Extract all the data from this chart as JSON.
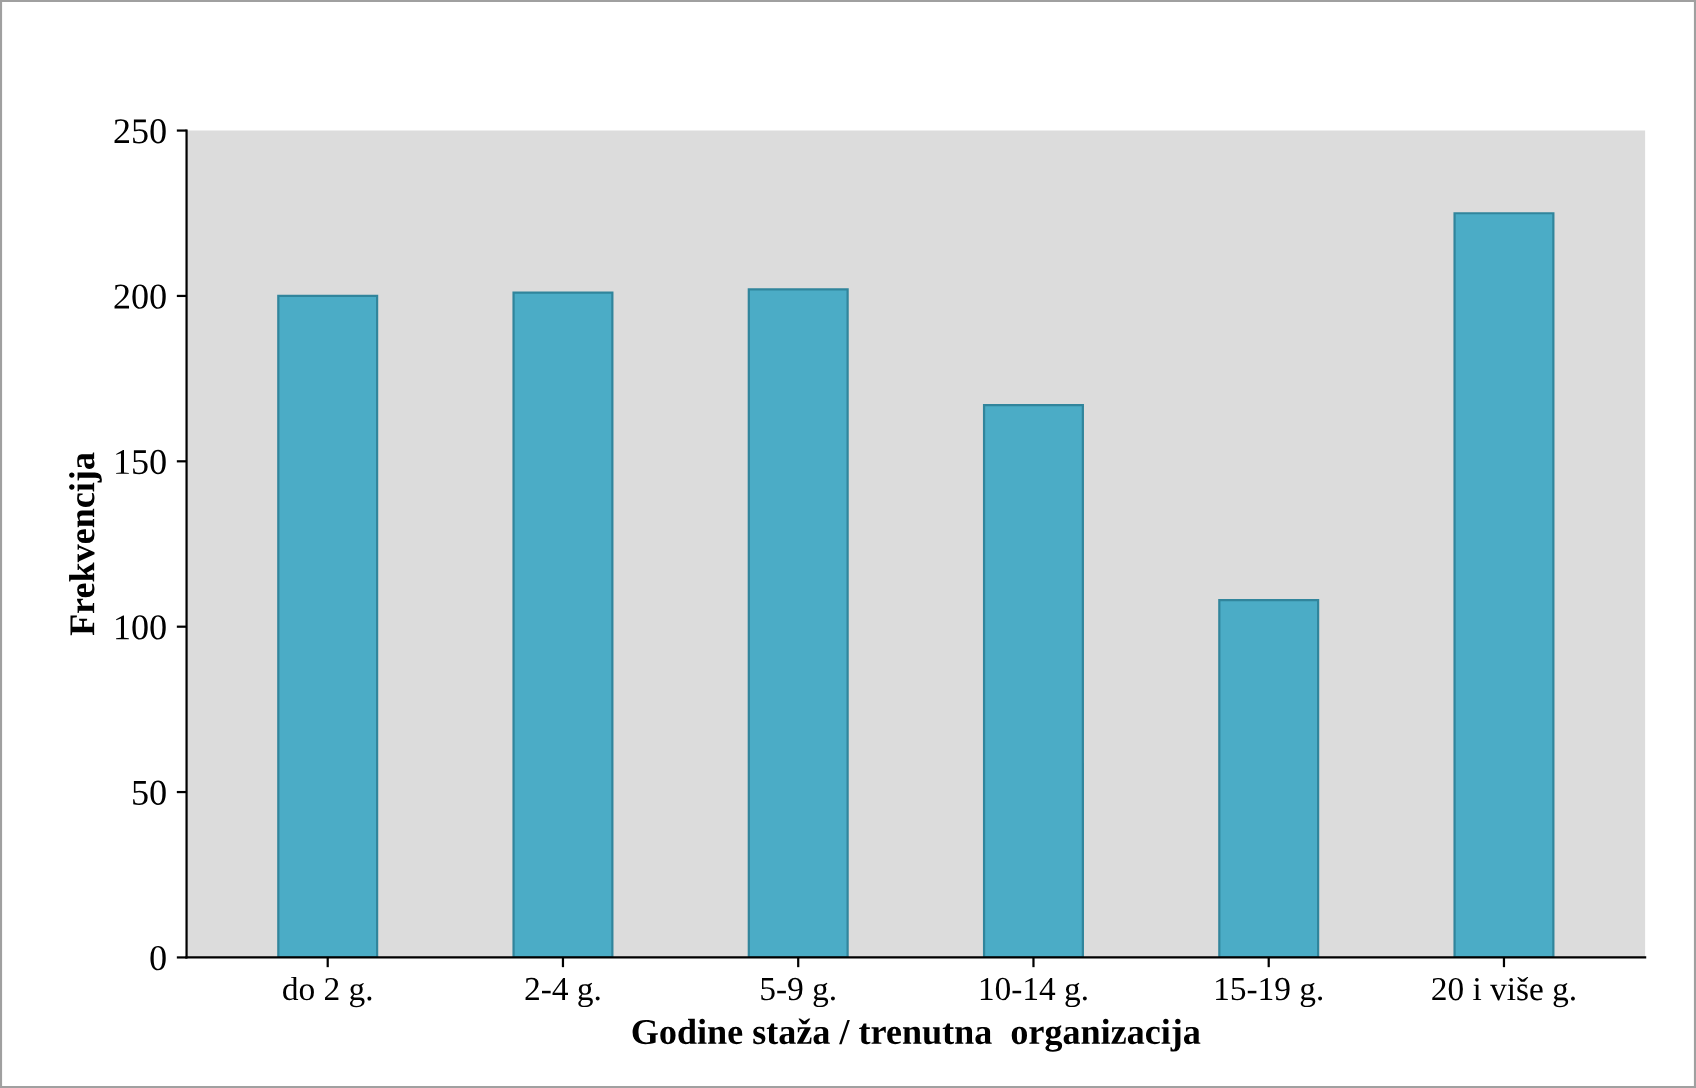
{
  "chart_data": {
    "type": "bar",
    "xlabel": "Godine staža / trenutna  organizacija",
    "ylabel": "Frekvencija",
    "categories": [
      "do 2 g.",
      "2-4 g.",
      "5-9 g.",
      "10-14 g.",
      "15-19 g.",
      "20 i više g."
    ],
    "values": [
      200,
      201,
      202,
      167,
      108,
      225
    ],
    "color": "#4bacc6",
    "ylim": [
      0,
      250
    ],
    "yticks": [
      0,
      50,
      100,
      150,
      200,
      250
    ],
    "grid": false
  }
}
